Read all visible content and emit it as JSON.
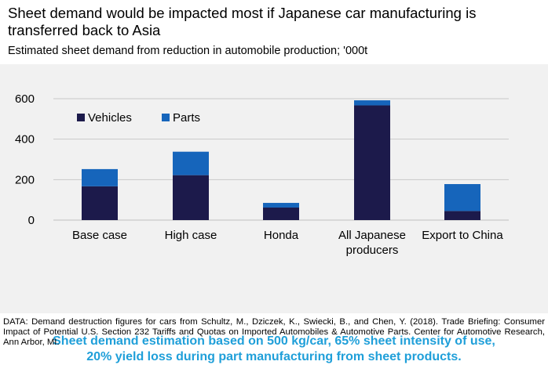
{
  "title": "Sheet demand would be impacted most if Japanese car manufacturing is transferred back to Asia",
  "subtitle": "Estimated sheet demand from reduction in automobile production; '000t",
  "note_lines": [
    "Sheet demand estimation based on 500 kg/car, 65% sheet intensity of use,",
    "20% yield loss during part manufacturing from sheet products."
  ],
  "footer": "DATA: Demand destruction figures for cars from Schultz, M., Dziczek, K., Swiecki, B., and Chen, Y. (2018). Trade Briefing: Consumer Impact of Potential U.S. Section 232 Tariffs and Quotas on Imported Automobiles & Automotive Parts. Center for Automotive Research, Ann Arbor, MI.",
  "colors": {
    "vehicles": "#1c1a4b",
    "parts": "#1665bb",
    "gridline": "#c8c8c8",
    "note": "#1f9fd9",
    "background": "#f1f1f1"
  },
  "chart_data": {
    "type": "bar",
    "stacked": true,
    "categories": [
      [
        "Base case"
      ],
      [
        "High case"
      ],
      [
        "Honda"
      ],
      [
        "All Japanese",
        "producers"
      ],
      [
        "Export to China"
      ]
    ],
    "series": [
      {
        "name": "Vehicles",
        "values": [
          167,
          222,
          62,
          567,
          45
        ]
      },
      {
        "name": "Parts",
        "values": [
          85,
          116,
          23,
          25,
          133
        ]
      }
    ],
    "ylim": [
      0,
      600
    ],
    "yticks": [
      0,
      200,
      400,
      600
    ],
    "grid": true,
    "legend_position": "top-left"
  }
}
